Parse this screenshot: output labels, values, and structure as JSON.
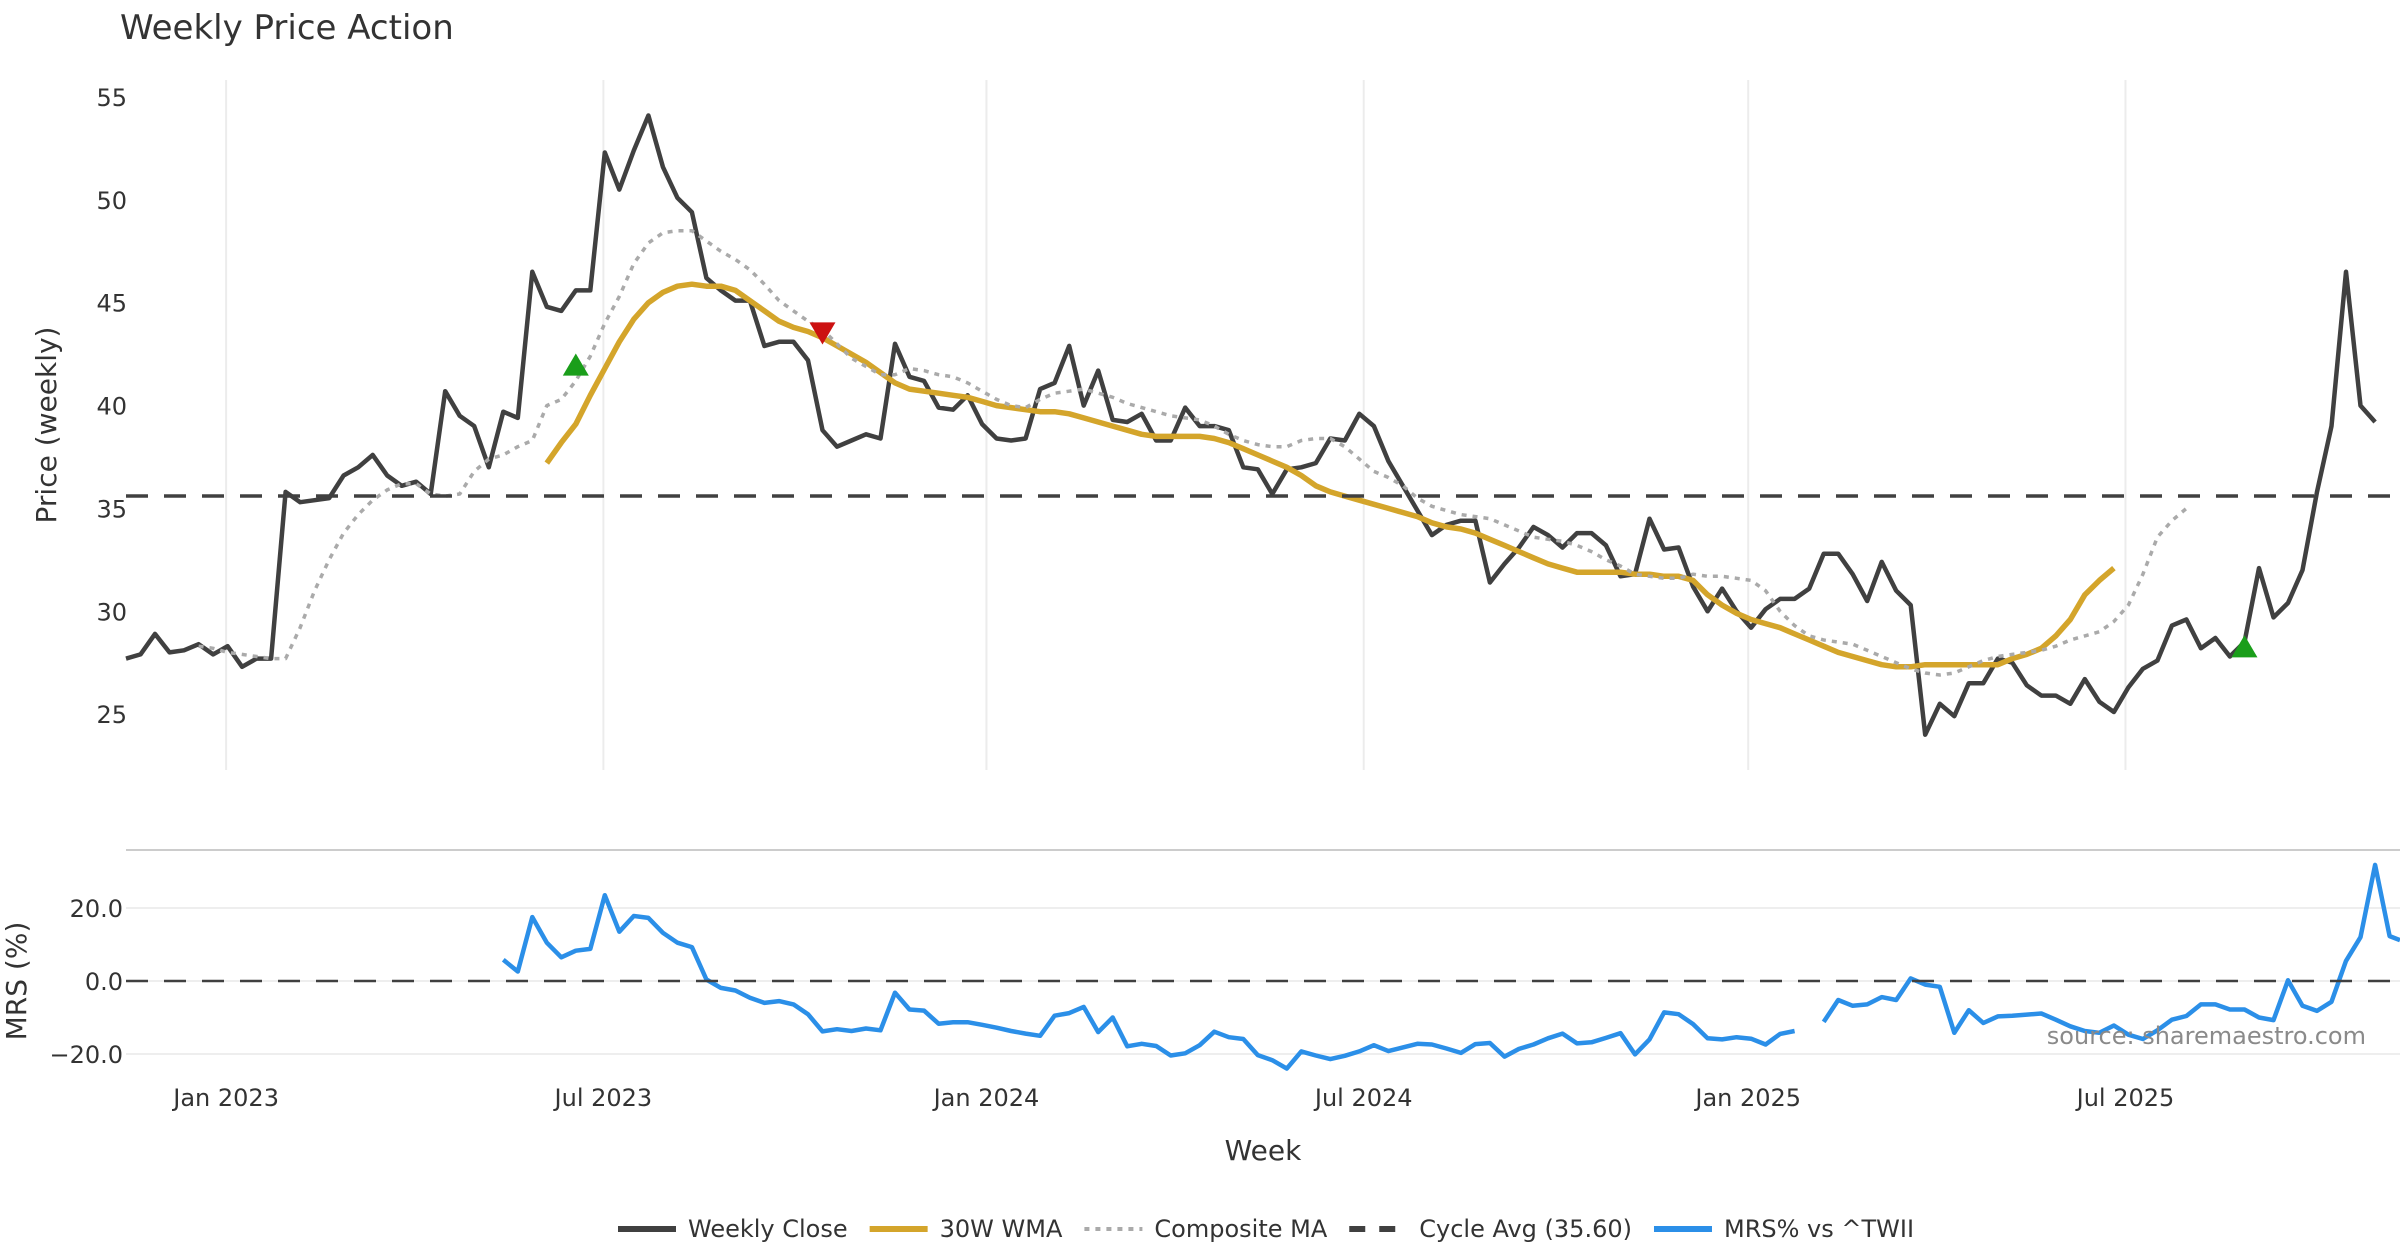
{
  "chart_data": [
    {
      "type": "line",
      "title": "Weekly Price Action",
      "xlabel": "Week",
      "ylabel": "Price (weekly)",
      "ylim": [
        22.3,
        55.8
      ],
      "yticks": [
        "25",
        "30",
        "35",
        "40",
        "45",
        "50",
        "55"
      ],
      "ytick_values": [
        25,
        30,
        35,
        40,
        45,
        50,
        55
      ],
      "xticks": [
        {
          "label": "Jan 2023",
          "week_index": 6.9
        },
        {
          "label": "Jul 2023",
          "week_index": 32.9
        },
        {
          "label": "Jan 2024",
          "week_index": 59.3
        },
        {
          "label": "Jul 2024",
          "week_index": 85.3
        },
        {
          "label": "Jan 2025",
          "week_index": 111.8
        },
        {
          "label": "Jul 2025",
          "week_index": 137.8
        }
      ],
      "grid": true,
      "series": [
        {
          "name": "Weekly Close",
          "color": "#404040",
          "style": "solid",
          "start_index": 0,
          "values": [
            27.7,
            27.9,
            28.9,
            28.0,
            28.1,
            28.4,
            27.9,
            28.3,
            27.3,
            27.7,
            27.7,
            35.8,
            35.3,
            35.4,
            35.5,
            36.6,
            37.0,
            37.6,
            36.6,
            36.1,
            36.3,
            35.7,
            40.7,
            39.5,
            39.0,
            37.0,
            39.7,
            39.4,
            46.5,
            44.8,
            44.6,
            45.6,
            45.6,
            52.3,
            50.5,
            52.4,
            54.1,
            51.6,
            50.1,
            49.4,
            46.2,
            45.6,
            45.1,
            45.1,
            42.9,
            43.1,
            43.1,
            42.2,
            38.8,
            38.0,
            38.3,
            38.6,
            38.4,
            43.0,
            41.4,
            41.2,
            39.9,
            39.8,
            40.5,
            39.1,
            38.4,
            38.3,
            38.4,
            40.8,
            41.1,
            42.9,
            40.0,
            41.7,
            39.3,
            39.2,
            39.6,
            38.3,
            38.3,
            39.9,
            39.0,
            39.0,
            38.8,
            37.0,
            36.9,
            35.7,
            36.9,
            37.0,
            37.2,
            38.4,
            38.3,
            39.6,
            39.0,
            37.3,
            36.1,
            34.9,
            33.7,
            34.2,
            34.4,
            34.4,
            31.4,
            32.3,
            33.1,
            34.1,
            33.7,
            33.1,
            33.8,
            33.8,
            33.2,
            31.7,
            31.8,
            34.5,
            33.0,
            33.1,
            31.2,
            30.0,
            31.1,
            30.0,
            29.2,
            30.1,
            30.6,
            30.6,
            31.1,
            32.8,
            32.8,
            31.8,
            30.5,
            32.4,
            31.0,
            30.3,
            24.0,
            25.5,
            24.9,
            26.5,
            26.5,
            27.7,
            27.5,
            26.4,
            25.9,
            25.9,
            25.5,
            26.7,
            25.6,
            25.1,
            26.3,
            27.2,
            27.6,
            29.3,
            29.6,
            28.2,
            28.7,
            27.8,
            28.5,
            32.1,
            29.7,
            30.4,
            32.0,
            35.8,
            39.0,
            46.5,
            40.0,
            39.2
          ]
        },
        {
          "name": "30W WMA",
          "color": "#d4a52b",
          "style": "solid",
          "start_index": 29,
          "values": [
            37.2,
            38.2,
            39.1,
            40.5,
            41.8,
            43.1,
            44.2,
            45.0,
            45.5,
            45.8,
            45.9,
            45.8,
            45.8,
            45.6,
            45.1,
            44.6,
            44.1,
            43.8,
            43.6,
            43.3,
            42.9,
            42.5,
            42.1,
            41.6,
            41.1,
            40.8,
            40.7,
            40.6,
            40.5,
            40.4,
            40.2,
            40.0,
            39.9,
            39.8,
            39.7,
            39.7,
            39.6,
            39.4,
            39.2,
            39.0,
            38.8,
            38.6,
            38.5,
            38.5,
            38.5,
            38.5,
            38.4,
            38.2,
            37.9,
            37.6,
            37.3,
            37.0,
            36.6,
            36.1,
            35.8,
            35.6,
            35.4,
            35.2,
            35.0,
            34.8,
            34.6,
            34.3,
            34.1,
            34.0,
            33.8,
            33.5,
            33.2,
            32.9,
            32.6,
            32.3,
            32.1,
            31.9,
            31.9,
            31.9,
            31.9,
            31.8,
            31.8,
            31.7,
            31.7,
            31.5,
            30.8,
            30.3,
            29.9,
            29.6,
            29.4,
            29.2,
            28.9,
            28.6,
            28.3,
            28.0,
            27.8,
            27.6,
            27.4,
            27.3,
            27.3,
            27.4,
            27.4,
            27.4,
            27.4,
            27.4,
            27.4,
            27.7,
            27.9,
            28.2,
            28.8,
            29.6,
            30.8,
            31.5,
            32.1
          ]
        },
        {
          "name": "Composite MA",
          "color": "#aaaaaa",
          "style": "dotted",
          "start_index": 5,
          "values": [
            28.3,
            28.2,
            28.0,
            27.9,
            27.8,
            27.7,
            27.7,
            29.2,
            31.0,
            32.5,
            33.8,
            34.7,
            35.4,
            35.9,
            36.2,
            36.2,
            35.7,
            35.6,
            35.7,
            36.8,
            37.4,
            37.6,
            38.0,
            38.3,
            40.0,
            40.3,
            41.2,
            42.4,
            44.0,
            45.3,
            46.9,
            47.9,
            48.4,
            48.5,
            48.5,
            48.0,
            47.5,
            47.1,
            46.6,
            45.9,
            45.1,
            44.6,
            44.1,
            43.7,
            43.0,
            42.3,
            41.9,
            41.5,
            41.5,
            41.8,
            41.7,
            41.5,
            41.4,
            41.1,
            40.7,
            40.3,
            40.0,
            39.9,
            40.3,
            40.6,
            40.7,
            40.8,
            40.6,
            40.4,
            40.1,
            39.9,
            39.7,
            39.5,
            39.4,
            39.3,
            39.0,
            38.6,
            38.3,
            38.1,
            38.0,
            38.0,
            38.3,
            38.4,
            38.4,
            38.0,
            37.4,
            36.8,
            36.5,
            36.1,
            35.5,
            35.1,
            34.9,
            34.7,
            34.6,
            34.5,
            34.2,
            33.9,
            33.6,
            33.5,
            33.4,
            33.2,
            32.9,
            32.5,
            32.2,
            31.8,
            31.7,
            31.6,
            31.6,
            31.8,
            31.7,
            31.7,
            31.6,
            31.5,
            31.0,
            30.0,
            29.3,
            28.8,
            28.6,
            28.5,
            28.4,
            28.1,
            27.8,
            27.5,
            27.2,
            27.0,
            26.9,
            27.0,
            27.3,
            27.6,
            27.8,
            27.9,
            28.0,
            28.1,
            28.3,
            28.6,
            28.8,
            29.0,
            29.5,
            30.3,
            31.8,
            33.6,
            34.4,
            35.0
          ]
        },
        {
          "name": "Cycle Avg (35.60)",
          "color": "#404040",
          "style": "dashed",
          "value": 35.6
        }
      ],
      "markers": [
        {
          "type": "buy",
          "shape": "triangle-up",
          "color": "#1a9e1a",
          "week_index": 31,
          "value": 41.9
        },
        {
          "type": "sell",
          "shape": "triangle-down",
          "color": "#cc1111",
          "week_index": 48,
          "value": 43.6
        },
        {
          "type": "buy",
          "shape": "triangle-up",
          "color": "#1a9e1a",
          "week_index": 146,
          "value": 28.2
        }
      ]
    },
    {
      "type": "line",
      "ylabel": "MRS (%)",
      "ylim": [
        -26,
        37
      ],
      "yticks": [
        "−20.0",
        "0.0",
        "20.0"
      ],
      "ytick_values": [
        -20,
        0,
        20
      ],
      "grid": true,
      "series": [
        {
          "name": "MRS% vs ^TWII",
          "color": "#2b8fe8",
          "style": "solid",
          "segments": [
            {
              "start_index": 26,
              "values": [
                5.8,
                2.6,
                17.5,
                10.5,
                6.5,
                8.3,
                8.8,
                23.5,
                13.5,
                17.8,
                17.3,
                13.2,
                10.5,
                9.3,
                0.4,
                -1.9,
                -2.6,
                -4.6,
                -6.0,
                -5.5,
                -6.4,
                -9.1,
                -13.8,
                -13.2,
                -13.7,
                -13.0,
                -13.5,
                -3.2,
                -7.8,
                -8.1,
                -11.7,
                -11.3,
                -11.3,
                -12.0,
                -12.8,
                -13.7,
                -14.4,
                -15.0,
                -9.5,
                -8.8,
                -7.1,
                -14.0,
                -10.0,
                -17.9,
                -17.2,
                -17.8,
                -20.4,
                -19.8,
                -17.6,
                -13.9,
                -15.4,
                -15.9,
                -20.3,
                -21.7,
                -24.0,
                -19.3,
                -20.4,
                -21.4,
                -20.5,
                -19.3,
                -17.6,
                -19.2,
                -18.2,
                -17.2,
                -17.4,
                -18.5,
                -19.7,
                -17.3,
                -17.0,
                -20.7,
                -18.6,
                -17.4,
                -15.7,
                -14.4,
                -17.1,
                -16.8,
                -15.6,
                -14.3,
                -20.1,
                -16.0,
                -8.6,
                -9.1,
                -11.8,
                -15.7,
                -16.0,
                -15.4,
                -15.8,
                -17.4,
                -14.5,
                -13.7
              ]
            },
            {
              "start_index": 117,
              "values": [
                -11.2,
                -5.2,
                -6.8,
                -6.4,
                -4.4,
                -5.2,
                0.7,
                -1.0,
                -1.6,
                -14.2,
                -8.0,
                -11.5,
                -9.7,
                -9.5,
                -9.2,
                -8.9,
                -10.6,
                -12.4,
                -13.7,
                -14.2,
                -12.2,
                -14.7,
                -15.9,
                -13.5,
                -10.6,
                -9.6,
                -6.4,
                -6.4,
                -7.8,
                -7.8,
                -10.0,
                -10.7,
                0.2,
                -6.8,
                -8.2,
                -5.7,
                5.5,
                12.0,
                31.8,
                12.3,
                11.2
              ]
            }
          ]
        },
        {
          "name": "Zero line",
          "color": "#404040",
          "style": "dashed",
          "value": 0
        }
      ]
    }
  ],
  "legend": {
    "placement": "bottom-center",
    "items": [
      {
        "label": "Weekly Close",
        "color": "#404040",
        "style": "solid"
      },
      {
        "label": "30W WMA",
        "color": "#d4a52b",
        "style": "solid"
      },
      {
        "label": "Composite MA",
        "color": "#aaaaaa",
        "style": "dotted"
      },
      {
        "label": "Cycle Avg (35.60)",
        "color": "#404040",
        "style": "dashed"
      },
      {
        "label": "MRS% vs ^TWII",
        "color": "#2b8fe8",
        "style": "solid"
      }
    ]
  },
  "annotation": {
    "source": "source: sharemaestro.com"
  }
}
